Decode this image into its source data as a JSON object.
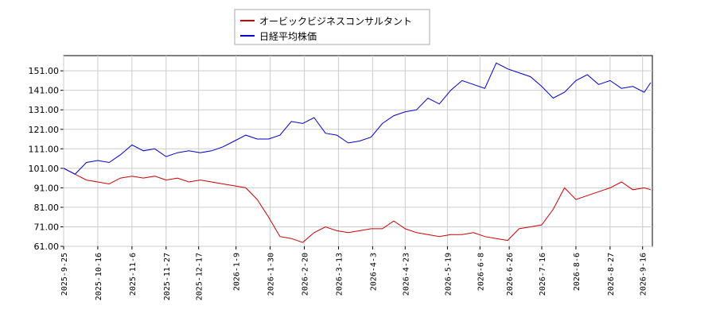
{
  "chart_data": {
    "type": "line",
    "x": [
      "2025-9-25",
      "2025-10-2",
      "2025-10-9",
      "2025-10-16",
      "2025-10-23",
      "2025-10-30",
      "2025-11-6",
      "2025-11-13",
      "2025-11-20",
      "2025-11-27",
      "2025-12-4",
      "2025-12-11",
      "2025-12-18",
      "2025-12-25",
      "2026-1-1",
      "2026-1-8",
      "2026-1-15",
      "2026-1-22",
      "2026-1-29",
      "2026-2-5",
      "2026-2-12",
      "2026-2-19",
      "2026-2-26",
      "2026-3-5",
      "2026-3-12",
      "2026-3-19",
      "2026-3-26",
      "2026-4-2",
      "2026-4-9",
      "2026-4-16",
      "2026-4-23",
      "2026-4-30",
      "2026-5-7",
      "2026-5-14",
      "2026-5-21",
      "2026-5-28",
      "2026-6-4",
      "2026-6-11",
      "2026-6-18",
      "2026-6-25",
      "2026-7-2",
      "2026-7-9",
      "2026-7-16",
      "2026-7-23",
      "2026-7-30",
      "2026-8-6",
      "2026-8-13",
      "2026-8-20",
      "2026-8-27",
      "2026-9-3",
      "2026-9-10",
      "2026-9-17",
      "2026-9-21"
    ],
    "series": [
      {
        "name": "オービックビジネスコンサルタント",
        "color": "#cc0000",
        "values": [
          101,
          98,
          95,
          94,
          93,
          96,
          97,
          96,
          97,
          95,
          96,
          94,
          95,
          94,
          93,
          92,
          91,
          85,
          76,
          66,
          65,
          63,
          68,
          71,
          69,
          68,
          69,
          70,
          70,
          74,
          70,
          68,
          67,
          66,
          67,
          67,
          68,
          66,
          65,
          64,
          70,
          71,
          72,
          80,
          91,
          85,
          87,
          89,
          91,
          94,
          90,
          91,
          90
        ]
      },
      {
        "name": "日経平均株価",
        "color": "#0000cc",
        "values": [
          101,
          98,
          104,
          105,
          104,
          108,
          113,
          110,
          111,
          107,
          109,
          110,
          109,
          110,
          112,
          115,
          118,
          116,
          116,
          118,
          125,
          124,
          127,
          119,
          118,
          114,
          115,
          117,
          124,
          128,
          130,
          131,
          137,
          134,
          141,
          146,
          144,
          142,
          155,
          152,
          150,
          148,
          143,
          137,
          140,
          146,
          149,
          144,
          146,
          142,
          143,
          140,
          145
        ]
      }
    ],
    "xlim": [
      "2025-9-25",
      "2026-9-22"
    ],
    "xticks": [
      "2025-9-25",
      "2025-10-16",
      "2025-11-6",
      "2025-11-27",
      "2025-12-17",
      "2026-1-9",
      "2026-1-30",
      "2026-2-20",
      "2026-3-13",
      "2026-4-3",
      "2026-4-23",
      "2026-5-19",
      "2026-6-8",
      "2026-6-26",
      "2026-7-16",
      "2026-8-6",
      "2026-8-27",
      "2026-9-16"
    ],
    "ylim": [
      61,
      158.8
    ],
    "yticks": [
      {
        "value": 61,
        "label": "61.00"
      },
      {
        "value": 71,
        "label": "71.00"
      },
      {
        "value": 81,
        "label": "81.00"
      },
      {
        "value": 91,
        "label": "91.00"
      },
      {
        "value": 101,
        "label": "101.00"
      },
      {
        "value": 111,
        "label": "111.00"
      },
      {
        "value": 121,
        "label": "121.00"
      },
      {
        "value": 131,
        "label": "131.00"
      },
      {
        "value": 141,
        "label": "141.00"
      },
      {
        "value": 151,
        "label": "151.00"
      }
    ],
    "grid": true
  }
}
